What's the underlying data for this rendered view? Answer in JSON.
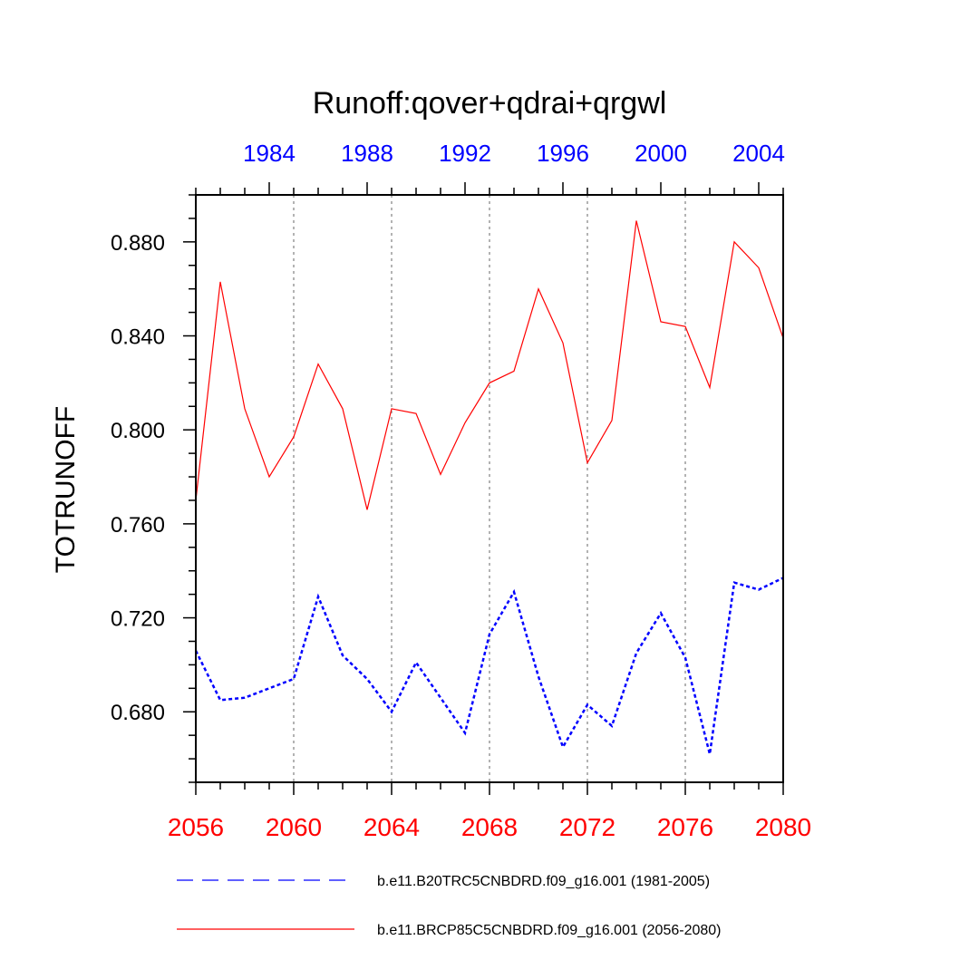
{
  "chart_data": {
    "type": "line",
    "title": "Runoff:qover+qdrai+qrgwl",
    "ylabel": "TOTRUNOFF",
    "xlim": [
      2056,
      2080
    ],
    "ylim": [
      0.65,
      0.9
    ],
    "yticks": [
      0.68,
      0.72,
      0.76,
      0.8,
      0.84,
      0.88
    ],
    "ytick_labels": [
      "0.680",
      "0.720",
      "0.760",
      "0.800",
      "0.840",
      "0.880"
    ],
    "xticks_bottom": [
      2056,
      2060,
      2064,
      2068,
      2072,
      2076,
      2080
    ],
    "xtick_labels_bottom": [
      "2056",
      "2060",
      "2064",
      "2068",
      "2072",
      "2076",
      "2080"
    ],
    "xtick_labels_top": [
      "1984",
      "1988",
      "1992",
      "1996",
      "2000",
      "2004"
    ],
    "xticks_top_positions": [
      2059,
      2063,
      2067,
      2071,
      2075,
      2079
    ],
    "grid": "vertical dotted at bottom major ticks",
    "colors": {
      "bottom_axis": "#ff0000",
      "top_axis": "#0000ff",
      "series_hist": "#0000ff",
      "series_future": "#ff0000"
    },
    "series": [
      {
        "name": "b.e11.B20TRC5CNBDRD.f09_g16.001 (1981-2005)",
        "color": "#0000ff",
        "dash": "dashed",
        "x": [
          2056,
          2057,
          2058,
          2059,
          2060,
          2061,
          2062,
          2063,
          2064,
          2065,
          2066,
          2067,
          2068,
          2069,
          2070,
          2071,
          2072,
          2073,
          2074,
          2075,
          2076,
          2077,
          2078,
          2079,
          2080
        ],
        "values": [
          0.706,
          0.685,
          0.686,
          0.69,
          0.694,
          0.729,
          0.704,
          0.694,
          0.68,
          0.701,
          0.686,
          0.671,
          0.713,
          0.731,
          0.695,
          0.665,
          0.683,
          0.674,
          0.705,
          0.722,
          0.703,
          0.662,
          0.735,
          0.732,
          0.737
        ]
      },
      {
        "name": "b.e11.BRCP85C5CNBDRD.f09_g16.001 (2056-2080)",
        "color": "#ff0000",
        "dash": "solid",
        "x": [
          2056,
          2057,
          2058,
          2059,
          2060,
          2061,
          2062,
          2063,
          2064,
          2065,
          2066,
          2067,
          2068,
          2069,
          2070,
          2071,
          2072,
          2073,
          2074,
          2075,
          2076,
          2077,
          2078,
          2079,
          2080
        ],
        "values": [
          0.77,
          0.863,
          0.809,
          0.78,
          0.797,
          0.828,
          0.809,
          0.766,
          0.809,
          0.807,
          0.781,
          0.803,
          0.82,
          0.825,
          0.86,
          0.837,
          0.786,
          0.804,
          0.889,
          0.846,
          0.844,
          0.818,
          0.88,
          0.869,
          0.839
        ]
      }
    ]
  }
}
